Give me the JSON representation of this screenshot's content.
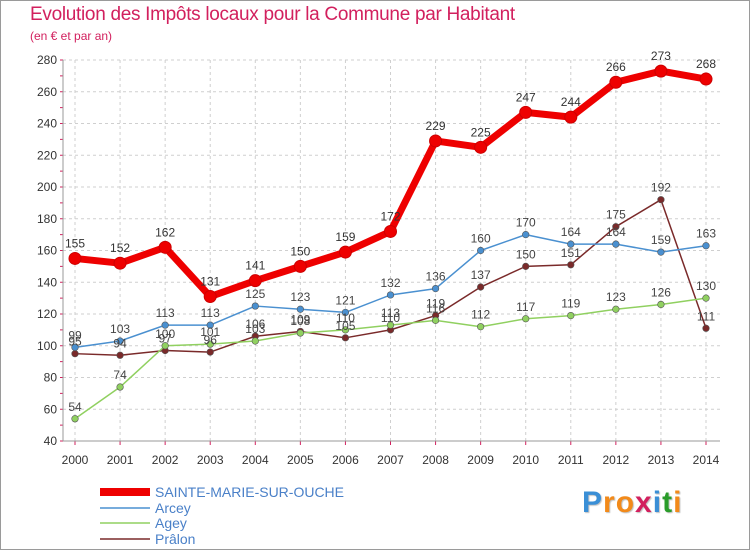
{
  "title": "Evolution des Impôts locaux pour la Commune par Habitant",
  "subtitle": "(en € et par an)",
  "logo": {
    "text": "Proxiti",
    "letters": [
      "P",
      "r",
      "o",
      "x",
      "i",
      "t",
      "i"
    ],
    "colors": [
      "#3a8fd6",
      "#f28a1a",
      "#f28a1a",
      "#d2205e",
      "#3a8fd6",
      "#2a9c2a",
      "#f28a1a"
    ]
  },
  "chart_data": {
    "type": "line",
    "title": "Evolution des Impôts locaux pour la Commune par Habitant",
    "subtitle": "(en € et par an)",
    "xlabel": "",
    "ylabel": "",
    "x": [
      "2000",
      "2001",
      "2002",
      "2003",
      "2004",
      "2005",
      "2006",
      "2007",
      "2008",
      "2009",
      "2010",
      "2011",
      "2012",
      "2013",
      "2014"
    ],
    "ylim": [
      40,
      280
    ],
    "yticks": [
      40,
      60,
      80,
      100,
      120,
      140,
      160,
      180,
      200,
      220,
      240,
      260,
      280
    ],
    "grid": true,
    "legend_position": "bottom-left",
    "series": [
      {
        "name": "SAINTE-MARIE-SUR-OUCHE",
        "color": "#ee0000",
        "labelColor": "#333333",
        "values": [
          155,
          152,
          162,
          131,
          141,
          150,
          159,
          172,
          229,
          225,
          247,
          244,
          266,
          273,
          268
        ],
        "labels": [
          "155",
          "152",
          "162",
          "131",
          "141",
          "150",
          "159",
          "172",
          "229",
          "225",
          "247",
          "244",
          "266",
          "273",
          "268"
        ]
      },
      {
        "name": "Arcey",
        "color": "#4a90d0",
        "labelColor": "#444444",
        "values": [
          99,
          103,
          113,
          113,
          125,
          123,
          121,
          132,
          136,
          160,
          170,
          164,
          164,
          159,
          163
        ],
        "labels": [
          "99",
          "103",
          "113",
          "113",
          "125",
          "123",
          "121",
          "132",
          "136",
          "160",
          "170",
          "164",
          "164",
          "159",
          "163"
        ]
      },
      {
        "name": "Agey",
        "color": "#90d060",
        "labelColor": "#444444",
        "values": [
          54,
          74,
          100,
          101,
          103,
          108,
          110,
          113,
          116,
          112,
          117,
          119,
          123,
          126,
          130
        ],
        "labels": [
          "54",
          "74",
          "100",
          "101",
          "103",
          "108",
          "110",
          "113",
          "116",
          "112",
          "117",
          "119",
          "123",
          "126",
          "130"
        ]
      },
      {
        "name": "Prâlon",
        "color": "#7a2a2a",
        "labelColor": "#444444",
        "values": [
          95,
          94,
          97,
          96,
          106,
          109,
          105,
          110,
          119,
          137,
          150,
          151,
          175,
          192,
          111
        ],
        "labels": [
          "95",
          "94",
          "97",
          "96",
          "106",
          "109",
          "105",
          "110",
          "119",
          "137",
          "150",
          "151",
          "175",
          "192",
          "111"
        ]
      }
    ]
  }
}
